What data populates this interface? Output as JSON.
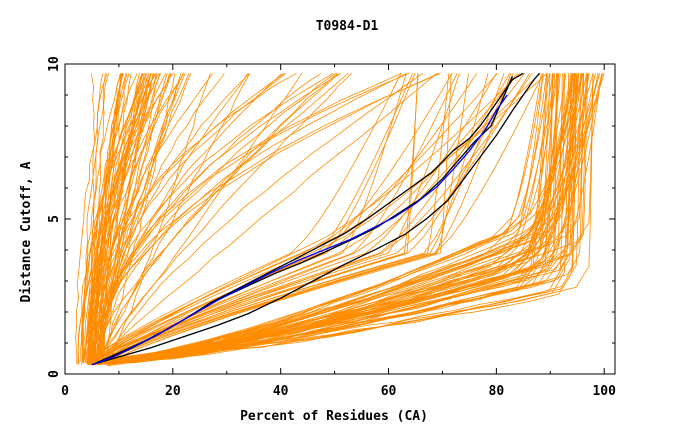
{
  "chart_data": {
    "type": "line",
    "title": "T0984-D1",
    "xlabel": "Percent of Residues (CA)",
    "ylabel": "Distance Cutoff, A",
    "xlim": [
      0,
      102
    ],
    "ylim": [
      0,
      10
    ],
    "x_ticks": [
      "0",
      "20",
      "40",
      "60",
      "80",
      "100"
    ],
    "y_ticks": [
      "0",
      "5",
      "10"
    ],
    "colors": {
      "background_models": "#ff8c00",
      "highlight_black": "#000000",
      "highlight_blue": "#0000ff"
    },
    "highlight_series": [
      {
        "name": "black-1",
        "color": "#000000",
        "x": [
          5,
          8,
          12,
          17,
          22,
          27,
          32,
          37,
          42,
          47,
          52,
          56,
          60,
          64,
          68,
          72,
          75,
          77,
          79,
          81,
          83,
          85
        ],
        "y": [
          0.3,
          0.5,
          0.8,
          1.25,
          1.75,
          2.3,
          2.75,
          3.2,
          3.65,
          4.1,
          4.55,
          5.0,
          5.5,
          6.0,
          6.5,
          7.2,
          7.6,
          8.0,
          8.5,
          9.0,
          9.5,
          9.7
        ]
      },
      {
        "name": "black-2",
        "color": "#000000",
        "x": [
          5,
          9,
          14,
          19,
          24,
          29,
          34,
          39,
          44,
          49,
          54,
          58,
          62,
          66,
          70,
          73,
          76,
          79,
          81,
          83
        ],
        "y": [
          0.3,
          0.6,
          1.0,
          1.45,
          1.95,
          2.45,
          2.85,
          3.25,
          3.6,
          4.0,
          4.4,
          4.75,
          5.2,
          5.65,
          6.3,
          6.9,
          7.5,
          8.0,
          8.8,
          9.6
        ]
      },
      {
        "name": "black-3",
        "color": "#000000",
        "x": [
          5,
          10,
          16,
          22,
          28,
          34,
          40,
          46,
          52,
          58,
          63,
          67,
          71,
          74,
          77,
          80,
          83,
          85,
          87,
          88
        ],
        "y": [
          0.3,
          0.55,
          0.85,
          1.2,
          1.55,
          1.95,
          2.45,
          3.0,
          3.55,
          4.05,
          4.5,
          5.0,
          5.6,
          6.3,
          7.0,
          7.7,
          8.5,
          9.0,
          9.5,
          9.7
        ]
      },
      {
        "name": "blue",
        "color": "#0000ff",
        "x": [
          5,
          9,
          13,
          18,
          23,
          28,
          33,
          38,
          43,
          48,
          53,
          57,
          61,
          65,
          69,
          72,
          75,
          78,
          80,
          82
        ],
        "y": [
          0.3,
          0.55,
          0.9,
          1.35,
          1.85,
          2.35,
          2.8,
          3.25,
          3.65,
          4.0,
          4.35,
          4.7,
          5.05,
          5.5,
          6.05,
          6.6,
          7.2,
          7.9,
          8.5,
          9.0
        ]
      }
    ],
    "background_bundles": [
      {
        "name": "steep-left",
        "count": 24,
        "x_start": [
          2,
          6
        ],
        "x_end": [
          5,
          18
        ],
        "y_end": 9.7
      },
      {
        "name": "left-cluster",
        "count": 32,
        "x_start": [
          3,
          7
        ],
        "x_end": [
          14,
          24
        ],
        "y_end": 9.7
      },
      {
        "name": "mid-fan",
        "count": 26,
        "x_start": [
          4,
          8
        ],
        "x_end": [
          26,
          78
        ],
        "y_end": 9.7
      },
      {
        "name": "middle-band",
        "count": 28,
        "x_start": [
          4,
          8
        ],
        "x_mid": [
          40,
          70
        ],
        "y_mid": 3.9,
        "x_end": [
          62,
          90
        ],
        "y_end": 9.7
      },
      {
        "name": "right-bundle",
        "count": 70,
        "x_start": [
          4,
          8
        ],
        "x_knee": [
          80,
          97
        ],
        "y_knee": [
          2.6,
          4.8
        ],
        "x_end": [
          88,
          100
        ],
        "y_end": 9.7
      }
    ]
  }
}
